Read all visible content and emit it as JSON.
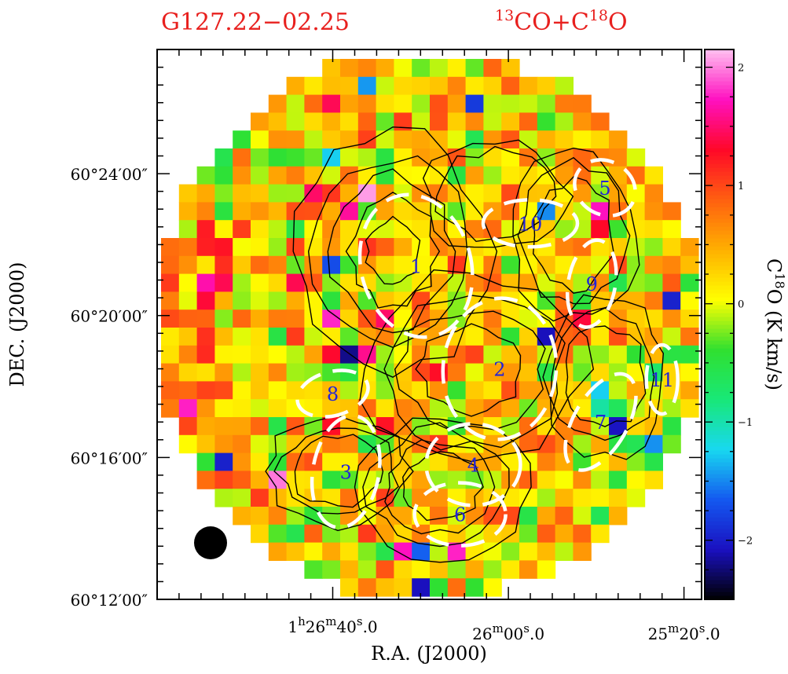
{
  "chart_data": {
    "type": "heatmap",
    "title_left": "G127.22−02.25",
    "title_right": {
      "iso1_mass": "13",
      "iso1_elem": "CO+C",
      "iso2_mass": "18",
      "iso2_elem": "O"
    },
    "xlabel": "R.A. (J2000)",
    "ylabel": "DEC. (J2000)",
    "x_ticks": [
      {
        "h": "1",
        "hu": "h",
        "m": "26",
        "mu": "m",
        "s": "40",
        "su": "s",
        "f": ".0"
      },
      {
        "h": "",
        "hu": "",
        "m": "26",
        "mu": "m",
        "s": "00",
        "su": "s",
        "f": ".0"
      },
      {
        "h": "",
        "hu": "",
        "m": "25",
        "mu": "m",
        "s": "20",
        "su": "s",
        "f": ".0"
      }
    ],
    "x_tick_ra_s": [
      5200,
      5160,
      5120
    ],
    "ra_range_s": [
      5240,
      5116
    ],
    "y_ticks": [
      "60°12′00″",
      "60°16′00″",
      "60°20′00″",
      "60°24′00″"
    ],
    "y_tick_dec_arcmin": [
      12,
      16,
      20,
      24
    ],
    "dec_range_arcmin": [
      12,
      27.5
    ],
    "colorbar": {
      "label_prefix": "C",
      "label_sup": "18",
      "label_suffix": "O (K km/s)",
      "range": [
        -2.5,
        2.15
      ],
      "ticks": [
        "−2",
        "−1",
        "0",
        "1",
        "2"
      ],
      "tick_values": [
        -2,
        -1,
        0,
        1,
        2
      ],
      "colors": [
        "#000000",
        "#1a10c0",
        "#1458f0",
        "#18d8f0",
        "#18e878",
        "#30e030",
        "#ffff00",
        "#ffb000",
        "#ff6010",
        "#ff0828",
        "#ff10c0",
        "#ffc0f0"
      ]
    },
    "cores": [
      {
        "label": "1",
        "ra_s": 5181,
        "dec_arcmin": 21.4
      },
      {
        "label": "2",
        "ra_s": 5162,
        "dec_arcmin": 18.5
      },
      {
        "label": "3",
        "ra_s": 5197,
        "dec_arcmin": 15.6
      },
      {
        "label": "4",
        "ra_s": 5168,
        "dec_arcmin": 15.8
      },
      {
        "label": "5",
        "ra_s": 5138,
        "dec_arcmin": 23.6
      },
      {
        "label": "6",
        "ra_s": 5171,
        "dec_arcmin": 14.4
      },
      {
        "label": "7",
        "ra_s": 5139,
        "dec_arcmin": 17.0
      },
      {
        "label": "8",
        "ra_s": 5200,
        "dec_arcmin": 17.8
      },
      {
        "label": "9",
        "ra_s": 5141,
        "dec_arcmin": 20.9
      },
      {
        "label": "10",
        "ra_s": 5155,
        "dec_arcmin": 22.6
      },
      {
        "label": "11",
        "ra_s": 5125,
        "dec_arcmin": 18.2
      }
    ],
    "grid": false,
    "beam": "bottom-left"
  }
}
